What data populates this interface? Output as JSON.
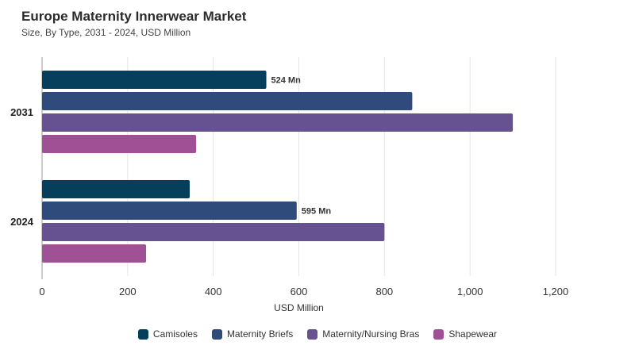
{
  "header": {
    "title": "Europe Maternity Innerwear Market",
    "subtitle": "Size, By Type, 2031 - 2024, USD Million"
  },
  "chart_data": {
    "type": "bar",
    "orientation": "horizontal",
    "title": "Europe Maternity Innerwear Market",
    "subtitle": "Size, By Type, 2031 - 2024, USD Million",
    "categories": [
      "2031",
      "2024"
    ],
    "series": [
      {
        "name": "Camisoles",
        "color": "#063f5c",
        "values": [
          524,
          345
        ]
      },
      {
        "name": "Maternity Briefs",
        "color": "#2f4b7c",
        "values": [
          865,
          595
        ]
      },
      {
        "name": "Maternity/Nursing Bras",
        "color": "#665191",
        "values": [
          1100,
          800
        ]
      },
      {
        "name": "Shapewear",
        "color": "#a05195",
        "values": [
          360,
          243
        ]
      }
    ],
    "data_labels": [
      {
        "category": "2031",
        "series": "Camisoles",
        "text": "524 Mn"
      },
      {
        "category": "2024",
        "series": "Maternity Briefs",
        "text": "595 Mn"
      }
    ],
    "xlabel": "USD Million",
    "ylabel": "",
    "xlim": [
      0,
      1200
    ],
    "x_ticks": [
      0,
      200,
      400,
      600,
      800,
      1000,
      1200
    ],
    "x_tick_labels": [
      "0",
      "200",
      "400",
      "600",
      "800",
      "1,000",
      "1,200"
    ],
    "grid": true,
    "legend_position": "bottom"
  }
}
